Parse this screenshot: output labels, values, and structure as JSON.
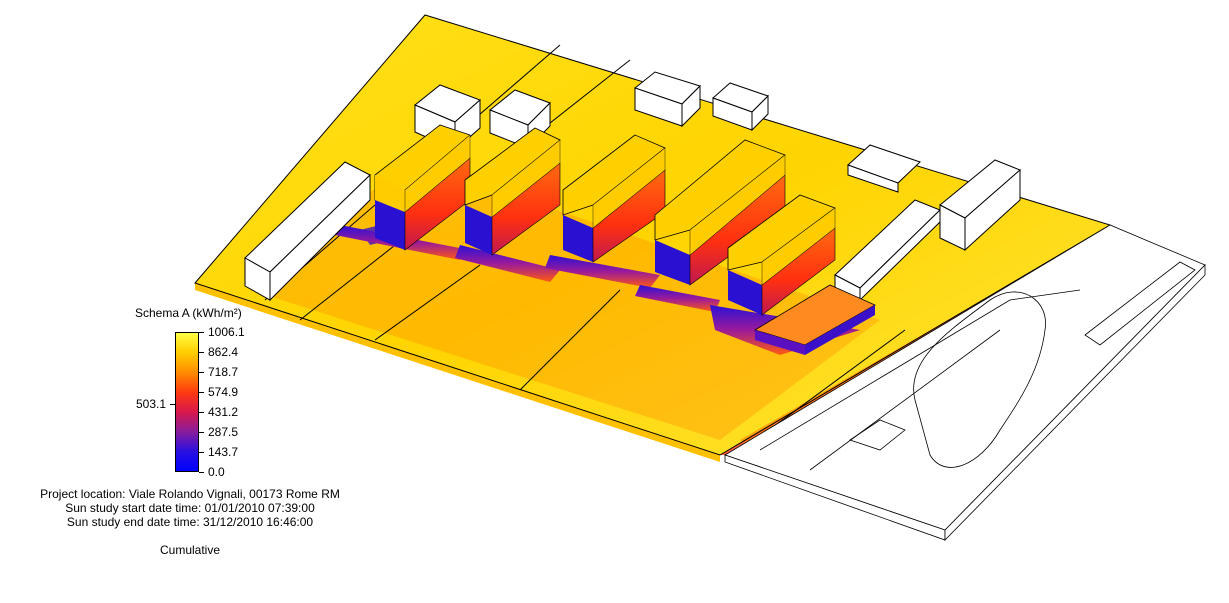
{
  "legend": {
    "title": "Schema A (kWh/m²)",
    "ticks": [
      "1006.1",
      "862.4",
      "718.7",
      "574.9",
      "431.2",
      "287.5",
      "143.7",
      "0.0"
    ],
    "mid_value": "503.1",
    "min": 0.0,
    "max": 1006.1,
    "gradient_colors": [
      "#ffff44",
      "#ffcc00",
      "#ff8c00",
      "#ff3a10",
      "#d8184a",
      "#8a1c9c",
      "#2a10e0",
      "#0000ff"
    ]
  },
  "project": {
    "location": "Project location: Viale Rolando Vignali, 00173 Rome RM",
    "start": "Sun study start date time: 01/01/2010 07:39:00",
    "end": "Sun study end date time: 31/12/2010 16:46:00",
    "mode": "Cumulative"
  },
  "colors": {
    "ground": "#ffd700",
    "ground_light": "#ffee33",
    "roof": "#ffcc00",
    "facade": "#ff4010",
    "shadow": "#3a10c8",
    "context": "#ffffff"
  }
}
